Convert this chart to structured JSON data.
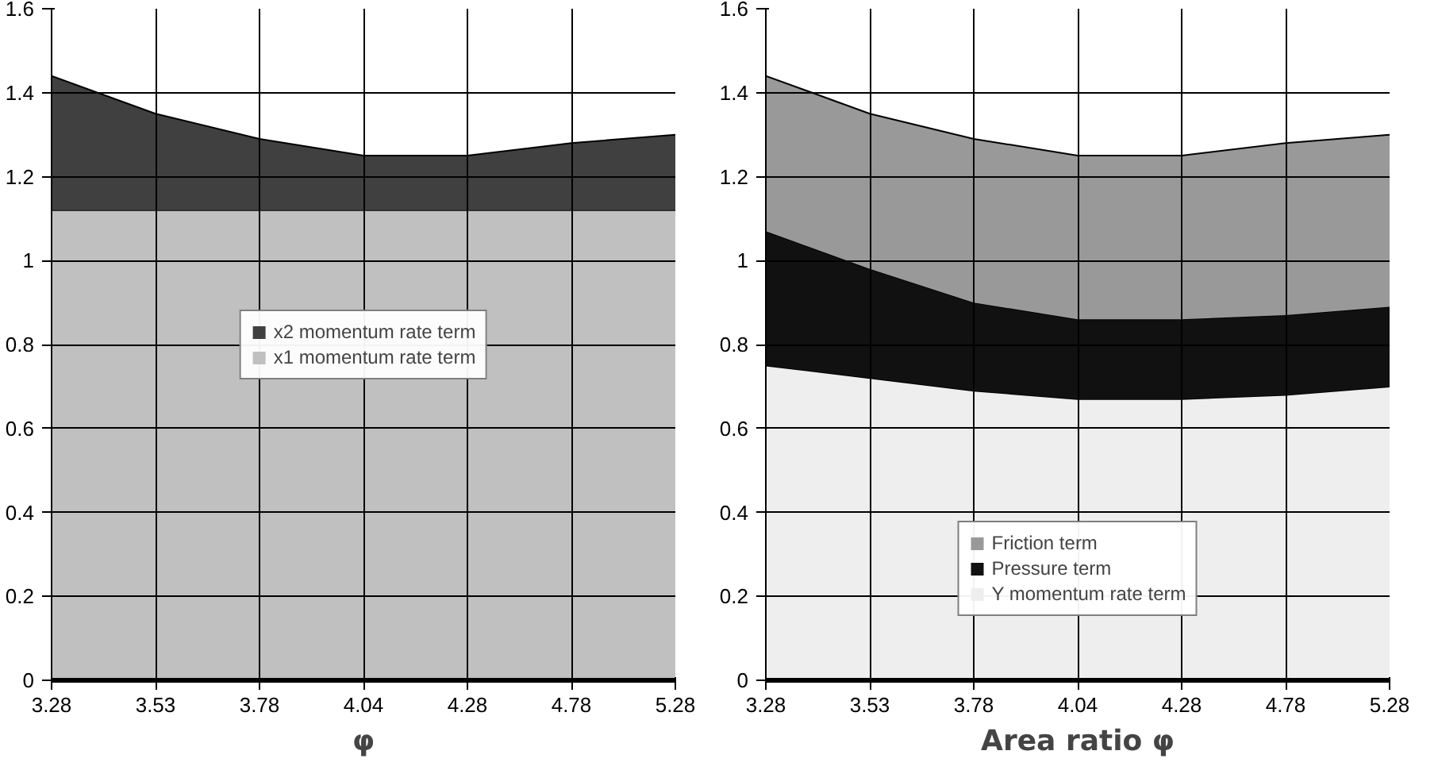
{
  "chart_data": [
    {
      "type": "area",
      "stacked": true,
      "categories": [
        "3.28",
        "3.53",
        "3.78",
        "4.04",
        "4.28",
        "4.78",
        "5.28"
      ],
      "xlabel": "φ",
      "ylim": [
        0,
        1.6
      ],
      "yticks": [
        0,
        0.2,
        0.4,
        0.6,
        0.8,
        1,
        1.2,
        1.4,
        1.6
      ],
      "grid": true,
      "legend": "center",
      "series": [
        {
          "name": "x1 momentum rate term",
          "color": "#c0c0c0",
          "values": [
            1.12,
            1.12,
            1.12,
            1.12,
            1.12,
            1.12,
            1.12
          ]
        },
        {
          "name": "x2 momentum rate term",
          "color": "#404040",
          "values": [
            0.32,
            0.23,
            0.17,
            0.13,
            0.13,
            0.16,
            0.18
          ]
        }
      ]
    },
    {
      "type": "area",
      "stacked": true,
      "categories": [
        "3.28",
        "3.53",
        "3.78",
        "4.04",
        "4.28",
        "4.78",
        "5.28"
      ],
      "xlabel": "Area ratio φ",
      "ylim": [
        0,
        1.6
      ],
      "yticks": [
        0,
        0.2,
        0.4,
        0.6,
        0.8,
        1,
        1.2,
        1.4,
        1.6
      ],
      "grid": true,
      "legend": "bottom",
      "series": [
        {
          "name": "Y momentum rate term",
          "color": "#eeeeee",
          "values": [
            0.75,
            0.72,
            0.69,
            0.67,
            0.67,
            0.68,
            0.7
          ]
        },
        {
          "name": "Pressure term",
          "color": "#111111",
          "values": [
            0.32,
            0.26,
            0.21,
            0.19,
            0.19,
            0.19,
            0.19
          ]
        },
        {
          "name": "Friction term",
          "color": "#999999",
          "values": [
            0.37,
            0.37,
            0.39,
            0.39,
            0.39,
            0.41,
            0.41
          ]
        }
      ]
    }
  ]
}
